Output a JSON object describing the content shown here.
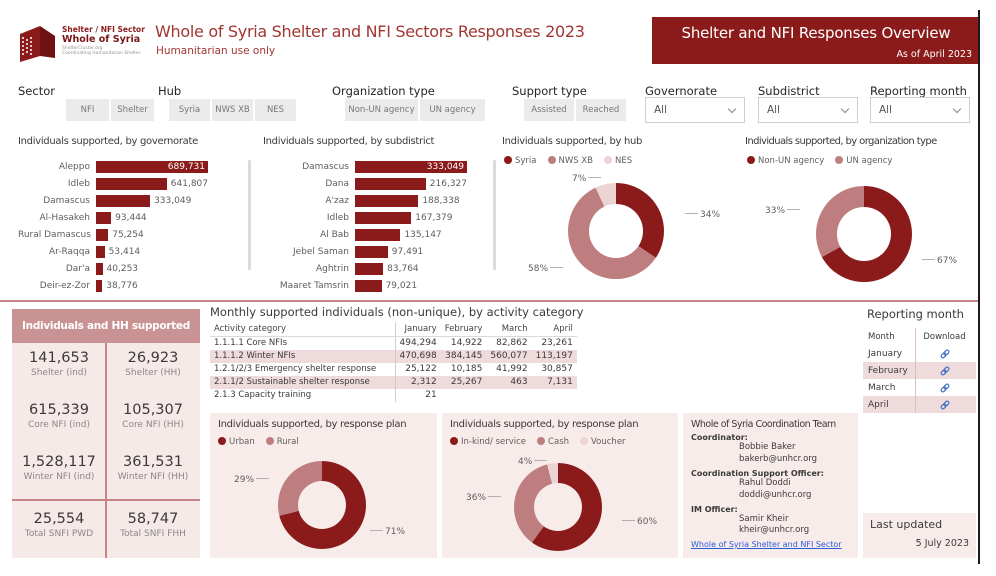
{
  "header": {
    "logo": {
      "line1": "Shelter / NFI Sector",
      "line2": "Whole of Syria",
      "line3": "ShelterCluster.org",
      "line4": "Coordinating Humanitarian Shelter"
    },
    "title": "Whole of Syria Shelter and NFI Sectors Responses 2023",
    "subtitle": "Humanitarian use only",
    "banner_title": "Shelter and NFI Responses Overview",
    "banner_subtitle": "As of April 2023"
  },
  "filters": {
    "sector": {
      "label": "Sector",
      "options": [
        "NFI",
        "Shelter"
      ]
    },
    "hub": {
      "label": "Hub",
      "options": [
        "Syria",
        "NWS XB",
        "NES"
      ]
    },
    "organization_type": {
      "label": "Organization type",
      "options": [
        "Non-UN agency",
        "UN agency"
      ]
    },
    "support_type": {
      "label": "Support type",
      "options": [
        "Assisted",
        "Reached"
      ]
    },
    "governorate": {
      "label": "Governorate",
      "value": "All"
    },
    "subdistrict": {
      "label": "Subdistrict",
      "value": "All"
    },
    "reporting_month": {
      "label": "Reporting month",
      "value": "All"
    }
  },
  "colors": {
    "primary_dark_red": "#8B1A1A",
    "rose": "#BE7E80",
    "light_pink": "#ECD4D5",
    "panel_pink": "#F7ECEA",
    "card_header": "#C99293",
    "alt_row": "#EFDBDC",
    "link_blue": "#2E5BD7",
    "download_icon_blue": "#4472C4"
  },
  "chart_data": [
    {
      "type": "bar",
      "title": "Individuals supported, by governorate",
      "categories": [
        "Aleppo",
        "Idleb",
        "Damascus",
        "Al-Hasakeh",
        "Rural Damascus",
        "Ar-Raqqa",
        "Dar'a",
        "Deir-ez-Zor"
      ],
      "values": [
        689731,
        641807,
        333049,
        93444,
        75254,
        53414,
        40253,
        38776
      ],
      "value_labels": [
        "689,731",
        "641,807",
        "333,049",
        "93,444",
        "75,254",
        "53,414",
        "40,253",
        "38,776"
      ],
      "bar_color": "#8B1A1A"
    },
    {
      "type": "bar",
      "title": "Individuals supported, by subdistrict",
      "categories": [
        "Damascus",
        "Dana",
        "A'zaz",
        "Idleb",
        "Al Bab",
        "Jebel Saman",
        "Aghtrin",
        "Maaret Tamsrin"
      ],
      "values": [
        333049,
        216327,
        188338,
        167379,
        135147,
        97491,
        83764,
        79021
      ],
      "value_labels": [
        "333,049",
        "216,327",
        "188,338",
        "167,379",
        "135,147",
        "97,491",
        "83,764",
        "79,021"
      ],
      "bar_color": "#8B1A1A"
    },
    {
      "type": "donut",
      "title": "Individuals supported, by hub",
      "slices": [
        {
          "label": "Syria",
          "pct": 34,
          "pct_label": "34%",
          "color": "#8B1A1A",
          "label_pos": [
            181,
            38
          ],
          "label_side": "l"
        },
        {
          "label": "NWS XB",
          "pct": 58,
          "pct_label": "58%",
          "color": "#BE7E80",
          "label_pos": [
            26,
            92
          ],
          "label_side": "r"
        },
        {
          "label": "NES",
          "pct": 7,
          "pct_label": "7%",
          "color": "#ECD4D5",
          "label_pos": [
            70,
            2
          ],
          "label_side": "r"
        }
      ]
    },
    {
      "type": "donut",
      "title": "Individuals supported, by organization type",
      "slices": [
        {
          "label": "Non-UN agency",
          "pct": 67,
          "pct_label": "67%",
          "color": "#8B1A1A",
          "label_pos": [
            175,
            84
          ],
          "label_side": "l"
        },
        {
          "label": "UN agency",
          "pct": 33,
          "pct_label": "33%",
          "color": "#BE7E80",
          "label_pos": [
            20,
            34
          ],
          "label_side": "r"
        }
      ]
    },
    {
      "type": "donut",
      "title": "Individuals supported, by response plan",
      "slices": [
        {
          "label": "Urban",
          "pct": 71,
          "pct_label": "71%",
          "color": "#8B1A1A",
          "label_pos": [
            158,
            72
          ],
          "label_side": "l"
        },
        {
          "label": "Rural",
          "pct": 29,
          "pct_label": "29%",
          "color": "#BE7E80",
          "label_pos": [
            24,
            20
          ],
          "label_side": "r"
        }
      ]
    },
    {
      "type": "donut",
      "title": "Individuals supported, by response plan",
      "slices": [
        {
          "label": "In-kind/ service",
          "pct": 60,
          "pct_label": "60%",
          "color": "#8B1A1A",
          "label_pos": [
            178,
            62
          ],
          "label_side": "l"
        },
        {
          "label": "Cash",
          "pct": 36,
          "pct_label": "36%",
          "color": "#BE7E80",
          "label_pos": [
            24,
            38
          ],
          "label_side": "r"
        },
        {
          "label": "Voucher",
          "pct": 4,
          "pct_label": "4%",
          "color": "#ECD4D5",
          "label_pos": [
            76,
            2
          ],
          "label_side": "r"
        }
      ]
    },
    {
      "type": "table",
      "title": "Monthly supported individuals (non-unique), by activity category",
      "columns": [
        "Activity category",
        "January",
        "February",
        "March",
        "April"
      ],
      "rows": [
        [
          "1.1.1.1 Core NFIs",
          "494,294",
          "14,922",
          "82,862",
          "23,261"
        ],
        [
          "1.1.1.2 Winter NFIs",
          "470,698",
          "384,145",
          "560,077",
          "113,197"
        ],
        [
          "1.2.1/2/3 Emergency shelter response",
          "25,122",
          "10,185",
          "41,992",
          "30,857"
        ],
        [
          "2.1.1/2 Sustainable shelter response",
          "2,312",
          "25,267",
          "463",
          "7,131"
        ],
        [
          "2.1.3 Capacity training",
          "21",
          "",
          "",
          ""
        ]
      ]
    }
  ],
  "summary_card": {
    "title": "Individuals and HH supported",
    "cells": [
      {
        "value": "141,653",
        "label": "Shelter (ind)"
      },
      {
        "value": "26,923",
        "label": "Shelter (HH)"
      },
      {
        "value": "615,339",
        "label": "Core NFI (ind)"
      },
      {
        "value": "105,307",
        "label": "Core NFI (HH)"
      },
      {
        "value": "1,528,117",
        "label": "Winter NFI (ind)"
      },
      {
        "value": "361,531",
        "label": "Winter NFI (HH)"
      },
      {
        "value": "25,554",
        "label": "Total SNFI PWD"
      },
      {
        "value": "58,747",
        "label": "Total SNFI FHH"
      }
    ]
  },
  "reporting_month_panel": {
    "title": "Reporting month",
    "columns": [
      "Month",
      "Download"
    ],
    "months": [
      "January",
      "February",
      "March",
      "April"
    ]
  },
  "coordination": {
    "title": "Whole of Syria Coordination Team",
    "entries": [
      {
        "role": "Coordinator:",
        "name": "Bobbie Baker",
        "email": "bakerb@unhcr.org"
      },
      {
        "role": "Coordination Support Officer:",
        "name": "Rahul Doddi",
        "email": "doddi@unhcr.org"
      },
      {
        "role": "IM Officer:",
        "name": "Samir Kheir",
        "email": "kheir@unhcr.org"
      }
    ],
    "link": "Whole of Syria Shelter and NFI Sector"
  },
  "last_updated": {
    "label": "Last updated",
    "date": "5 July 2023"
  }
}
